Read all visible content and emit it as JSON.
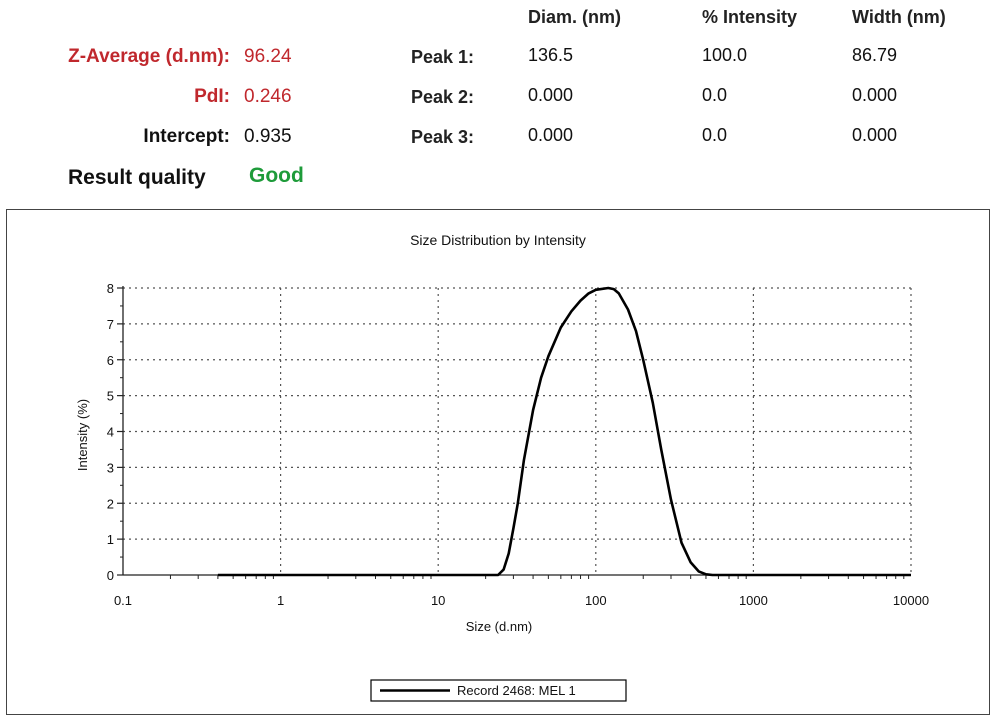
{
  "summary": {
    "z_average_label": "Z-Average (d.nm):",
    "z_average_value": "96.24",
    "pdi_label": "PdI:",
    "pdi_value": "0.246",
    "intercept_label": "Intercept:",
    "intercept_value": "0.935",
    "quality_label": "Result quality",
    "quality_value": "Good"
  },
  "peaks": {
    "headers": [
      "Diam. (nm)",
      "% Intensity",
      "Width (nm)"
    ],
    "rows": [
      {
        "label": "Peak 1:",
        "diam": "136.5",
        "intensity": "100.0",
        "width": "86.79"
      },
      {
        "label": "Peak 2:",
        "diam": "0.000",
        "intensity": "0.0",
        "width": "0.000"
      },
      {
        "label": "Peak 3:",
        "diam": "0.000",
        "intensity": "0.0",
        "width": "0.000"
      }
    ]
  },
  "colors": {
    "highlight": "#c0282d",
    "good": "#1e9b3a",
    "line": "#000000"
  },
  "chart_data": {
    "type": "line",
    "title": "Size Distribution by Intensity",
    "xlabel": "Size (d.nm)",
    "ylabel": "Intensity (%)",
    "x_scale": "log",
    "xlim": [
      0.1,
      10000
    ],
    "ylim": [
      0,
      8
    ],
    "x_ticks": [
      "0.1",
      "1",
      "10",
      "100",
      "1000",
      "10000"
    ],
    "y_ticks": [
      "0",
      "1",
      "2",
      "3",
      "4",
      "5",
      "6",
      "7",
      "8"
    ],
    "grid": true,
    "legend_position": "bottom-center",
    "series": [
      {
        "name": "Record 2468: MEL 1",
        "x": [
          0.4,
          1,
          5,
          10,
          20,
          24,
          26,
          28,
          30,
          32,
          35,
          40,
          45,
          50,
          60,
          70,
          80,
          90,
          100,
          120,
          130,
          140,
          160,
          180,
          200,
          230,
          260,
          300,
          350,
          400,
          450,
          500,
          550,
          600,
          1000,
          5000,
          10000
        ],
        "y": [
          0,
          0,
          0,
          0,
          0,
          0,
          0.15,
          0.6,
          1.3,
          2.0,
          3.2,
          4.6,
          5.5,
          6.1,
          6.9,
          7.35,
          7.65,
          7.85,
          7.95,
          8.0,
          7.97,
          7.85,
          7.4,
          6.8,
          6.0,
          4.8,
          3.5,
          2.1,
          0.9,
          0.35,
          0.1,
          0.02,
          0,
          0,
          0,
          0,
          0
        ]
      }
    ]
  }
}
